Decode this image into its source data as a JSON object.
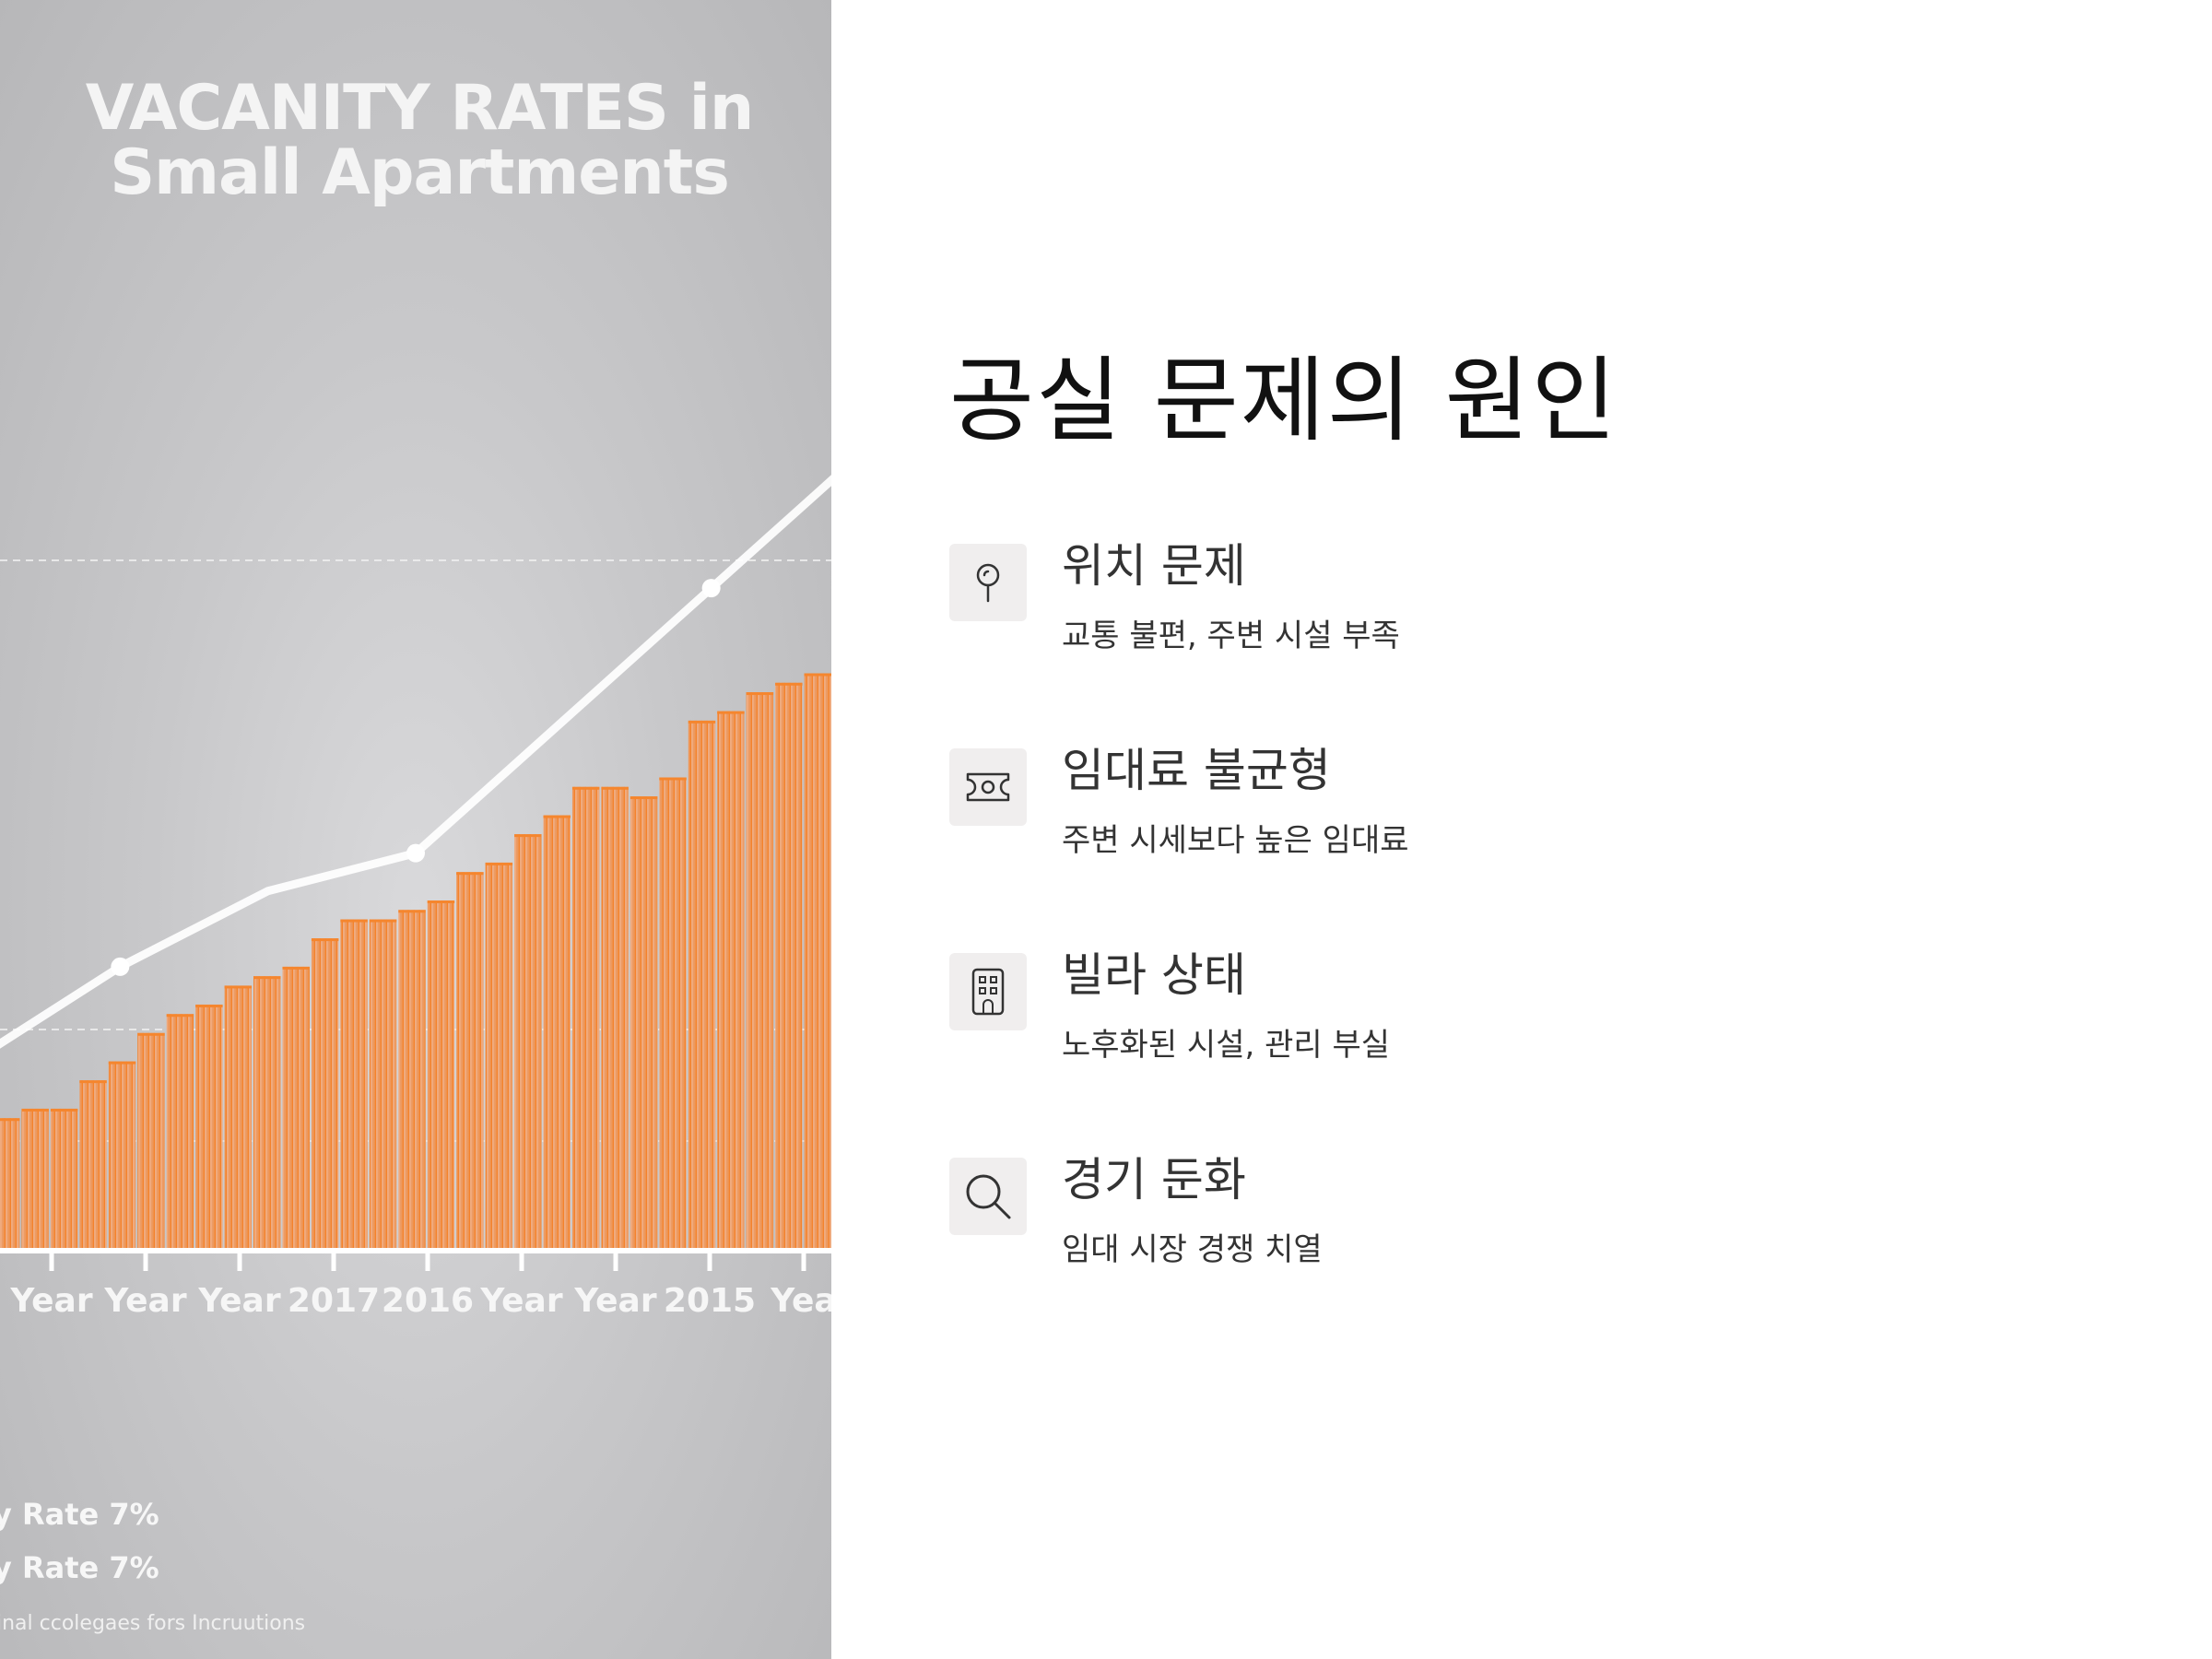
{
  "slide": {
    "title": "공실 문제의 원인",
    "causes": [
      {
        "title": "위치 문제",
        "description": "교통 불편, 주변 시설 부족",
        "icon": "map-pin-icon"
      },
      {
        "title": "임대료 불균형",
        "description": "주변 시세보다 높은 임대료",
        "icon": "money-bill-icon"
      },
      {
        "title": "빌라 상태",
        "description": "노후화된 시설, 관리 부실",
        "icon": "building-icon"
      },
      {
        "title": "경기 둔화",
        "description": "임대 시장 경쟁 치열",
        "icon": "search-icon"
      }
    ]
  },
  "image": {
    "title_line1": "VACANITY RATES in",
    "title_line2": "Small Apartments",
    "x_ticks": [
      "Year",
      "Year",
      "Year",
      "2017",
      "2016",
      "Year",
      "Year",
      "2015",
      "Yea"
    ],
    "legend": [
      "y Rate 7%",
      "y Rate 7%"
    ],
    "footnote": "inal ccolegaes fors Incruutions",
    "colors": {
      "bar": "#f08a3c",
      "line": "#ffffff",
      "background": "#c8c8ca"
    }
  },
  "chart_data": {
    "type": "bar",
    "title": "VACANITY RATES in Small Apartments",
    "categories": [
      "Year",
      "Year",
      "Year",
      "2017",
      "2016",
      "Year",
      "Year",
      "2015",
      "Yea"
    ],
    "bar_values": [
      14,
      15,
      15,
      18,
      20,
      23,
      25,
      26,
      28,
      29,
      30,
      33,
      35,
      35,
      36,
      37,
      40,
      41,
      44,
      46,
      49,
      49,
      48,
      50,
      56,
      57,
      59,
      60,
      61
    ],
    "line_series": {
      "values": [
        20,
        30,
        38,
        42,
        56,
        70,
        84
      ],
      "markers": [
        false,
        true,
        false,
        true,
        false,
        true,
        false
      ]
    },
    "ylim": [
      0,
      100
    ]
  }
}
